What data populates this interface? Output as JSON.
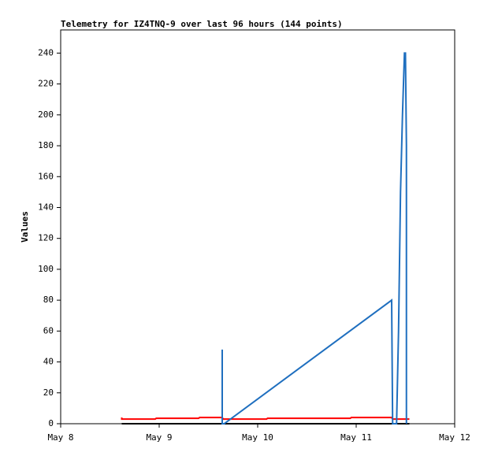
{
  "chart_data": {
    "type": "line",
    "title": "Telemetry for IZ4TNQ-9 over last 96 hours (144 points)",
    "y_label": "Values",
    "xlim": [
      8,
      12
    ],
    "xticks": [
      {
        "value": 8,
        "label": "May 8"
      },
      {
        "value": 9,
        "label": "May 9"
      },
      {
        "value": 10,
        "label": "May 10"
      },
      {
        "value": 11,
        "label": "May 11"
      },
      {
        "value": 12,
        "label": "May 12"
      }
    ],
    "ylim": [
      0,
      255
    ],
    "yticks": [
      0,
      20,
      40,
      60,
      80,
      100,
      120,
      140,
      160,
      180,
      200,
      220,
      240
    ],
    "series": [
      {
        "color": "#000000",
        "x": [
          8.62,
          11.54
        ],
        "values": [
          0,
          0
        ]
      },
      {
        "color": "#ff0000",
        "x": [
          8.62,
          8.62,
          8.96,
          8.97,
          9.4,
          9.41,
          9.64,
          9.65,
          10.09,
          10.1,
          10.94,
          10.95,
          11.36,
          11.37,
          11.54
        ],
        "values": [
          4,
          3,
          3,
          3.5,
          3.5,
          4,
          4,
          3,
          3,
          3.5,
          3.5,
          4,
          4,
          3,
          3
        ]
      },
      {
        "color": "#1f6fbf",
        "x": [
          9.64,
          9.64,
          9.66,
          11.36,
          11.37,
          11.41,
          11.43,
          11.45,
          11.47,
          11.49,
          11.5,
          11.51,
          11.51
        ],
        "values": [
          48,
          0,
          0,
          80,
          0,
          0,
          60,
          150,
          200,
          240,
          240,
          180,
          0
        ]
      }
    ]
  }
}
